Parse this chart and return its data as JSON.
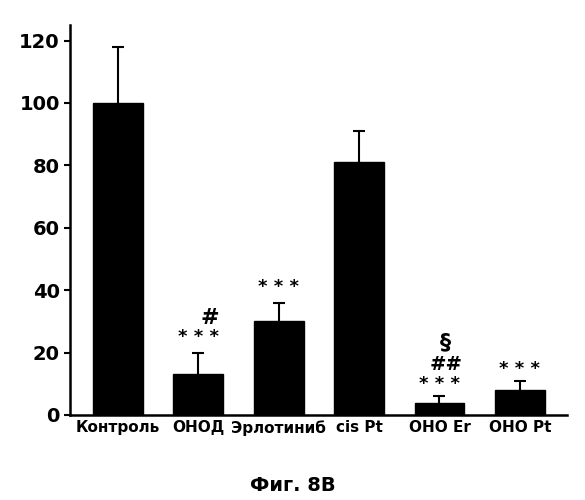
{
  "categories": [
    "Контроль",
    "ОНОД",
    "Эрлотиниб",
    "cis Pt",
    "ОНО Er",
    "ОНО Pt"
  ],
  "values": [
    100,
    13,
    30,
    81,
    4,
    8
  ],
  "errors": [
    18,
    7,
    6,
    10,
    2,
    3
  ],
  "bar_color": "#000000",
  "edge_color": "#000000",
  "ylim": [
    0,
    125
  ],
  "yticks": [
    0,
    20,
    40,
    60,
    80,
    100,
    120
  ],
  "figure_title": "Фиг. 8В",
  "background_color": "#ffffff",
  "figsize": [
    5.85,
    5.0
  ],
  "dpi": 100
}
